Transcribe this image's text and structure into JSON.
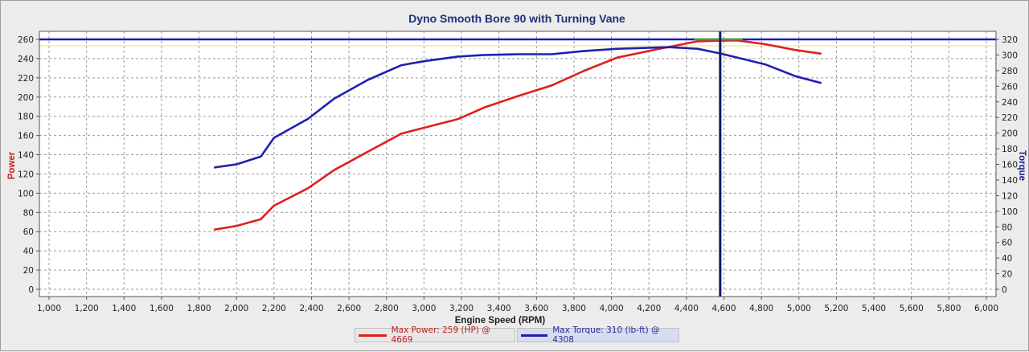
{
  "chart_data": {
    "type": "line",
    "title": "Dyno Smooth Bore 90 with Turning Vane",
    "xlabel": "Engine Speed (RPM)",
    "ylabel_left": "Power",
    "ylabel_right": "Torque",
    "xlim": [
      1000,
      6000
    ],
    "ylim_left": [
      0,
      260
    ],
    "ylim_right": [
      0,
      320
    ],
    "x_ticks": [
      "1,000",
      "1,200",
      "1,400",
      "1,600",
      "1,800",
      "2,000",
      "2,200",
      "2,400",
      "2,600",
      "2,800",
      "3,000",
      "3,200",
      "3,400",
      "3,600",
      "3,800",
      "4,000",
      "4,200",
      "4,400",
      "4,600",
      "4,800",
      "5,000",
      "5,200",
      "5,400",
      "5,600",
      "5,800",
      "6,000"
    ],
    "y_left_ticks": [
      "0",
      "20",
      "40",
      "60",
      "80",
      "100",
      "120",
      "140",
      "160",
      "180",
      "200",
      "220",
      "240",
      "260"
    ],
    "y_right_ticks": [
      "0",
      "20",
      "40",
      "60",
      "80",
      "100",
      "120",
      "140",
      "160",
      "180",
      "200",
      "220",
      "240",
      "260",
      "280",
      "300",
      "320"
    ],
    "grid": true,
    "cursor_rpm": 4580,
    "reference_line_left": 260,
    "series": [
      {
        "name": "Power",
        "axis": "left",
        "color": "#dd2020",
        "points": [
          [
            1880,
            62
          ],
          [
            2000,
            66
          ],
          [
            2130,
            73
          ],
          [
            2200,
            87
          ],
          [
            2380,
            105
          ],
          [
            2520,
            124
          ],
          [
            2700,
            143
          ],
          [
            2880,
            162
          ],
          [
            3000,
            168
          ],
          [
            3180,
            177
          ],
          [
            3320,
            189
          ],
          [
            3500,
            201
          ],
          [
            3680,
            212
          ],
          [
            3850,
            227
          ],
          [
            4030,
            241
          ],
          [
            4250,
            250
          ],
          [
            4460,
            258
          ],
          [
            4669,
            259
          ],
          [
            4820,
            255
          ],
          [
            4980,
            249
          ],
          [
            5120,
            245
          ]
        ]
      },
      {
        "name": "Torque",
        "axis": "right",
        "color": "#2020b0",
        "points": [
          [
            1880,
            156
          ],
          [
            2000,
            160
          ],
          [
            2130,
            170
          ],
          [
            2200,
            194
          ],
          [
            2380,
            218
          ],
          [
            2520,
            244
          ],
          [
            2700,
            268
          ],
          [
            2880,
            287
          ],
          [
            3000,
            292
          ],
          [
            3180,
            298
          ],
          [
            3320,
            300
          ],
          [
            3500,
            301
          ],
          [
            3680,
            301
          ],
          [
            3850,
            305
          ],
          [
            4030,
            308
          ],
          [
            4308,
            310
          ],
          [
            4460,
            308
          ],
          [
            4580,
            302
          ],
          [
            4820,
            288
          ],
          [
            4980,
            273
          ],
          [
            5120,
            264
          ]
        ]
      }
    ],
    "legend": [
      {
        "label": "Max Power: 259 (HP) @ 4669",
        "color": "#dd2020",
        "text_color": "#c02020"
      },
      {
        "label": "Max Torque: 310 (lb-ft) @ 4308",
        "color": "#2020b0",
        "text_color": "#2a2a9a"
      }
    ],
    "legend_placement": "bottom-center"
  }
}
